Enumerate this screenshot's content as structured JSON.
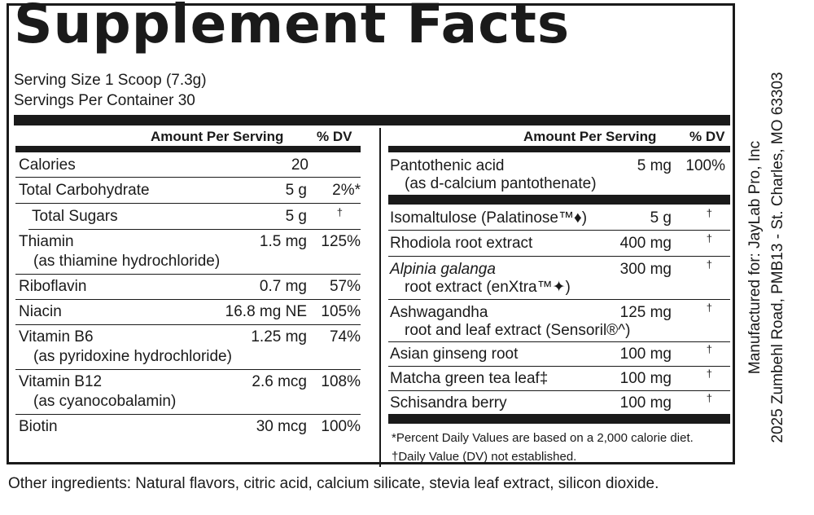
{
  "title": "Supplement Facts",
  "serving_size": "Serving Size 1 Scoop (7.3g)",
  "servings_per_container": "Servings Per Container 30",
  "headers": {
    "amount": "Amount Per Serving",
    "dv": "% DV"
  },
  "left_rows": [
    {
      "name": "Calories",
      "amount": "20",
      "dv": ""
    },
    {
      "name": "Total Carbohydrate",
      "amount": "5 g",
      "dv": "2%*"
    },
    {
      "name": "Total Sugars",
      "amount": "5 g",
      "dv": "†"
    },
    {
      "name": "Thiamin",
      "sub": "(as thiamine hydrochloride)",
      "amount": "1.5 mg",
      "dv": "125%"
    },
    {
      "name": "Riboflavin",
      "amount": "0.7 mg",
      "dv": "57%"
    },
    {
      "name": "Niacin",
      "amount": "16.8 mg NE",
      "dv": "105%"
    },
    {
      "name": "Vitamin B6",
      "sub": "(as pyridoxine hydrochloride)",
      "amount": "1.25 mg",
      "dv": "74%"
    },
    {
      "name": "Vitamin B12",
      "sub": "(as cyanocobalamin)",
      "amount": "2.6 mcg",
      "dv": "108%"
    },
    {
      "name": "Biotin",
      "amount": "30 mcg",
      "dv": "100%"
    }
  ],
  "right_rows": [
    {
      "name": "Pantothenic acid",
      "sub": "(as d-calcium pantothenate)",
      "amount": "5 mg",
      "dv": "100%"
    },
    {
      "name": "Isomaltulose (Palatinose™♦)",
      "amount": "5 g",
      "dv": "†"
    },
    {
      "name": "Rhodiola root extract",
      "amount": "400 mg",
      "dv": "†"
    },
    {
      "name": "Alpinia galanga",
      "sub": "root extract (enXtra™✦)",
      "amount": "300 mg",
      "dv": "†"
    },
    {
      "name": "Ashwagandha",
      "sub": "root and leaf extract (Sensoril®^)",
      "amount": "125 mg",
      "dv": "†"
    },
    {
      "name": "Asian ginseng root",
      "amount": "100 mg",
      "dv": "†"
    },
    {
      "name": "Matcha green tea leaf‡",
      "amount": "100 mg",
      "dv": "†"
    },
    {
      "name": "Schisandra berry",
      "amount": "100 mg",
      "dv": "†"
    }
  ],
  "footnotes": {
    "percent_dv": "*Percent Daily Values are based on a 2,000 calorie diet.",
    "dv_not_established": "†Daily Value (DV) not established."
  },
  "other_ingredients": "Other ingredients: Natural flavors, citric acid, calcium silicate, stevia leaf extract, silicon dioxide.",
  "manufacturer": {
    "line1": "Manufactured for: JayLab Pro, Inc",
    "line2": "2025 Zumbehl Road, PMB13 - St. Charles, MO 63303"
  }
}
